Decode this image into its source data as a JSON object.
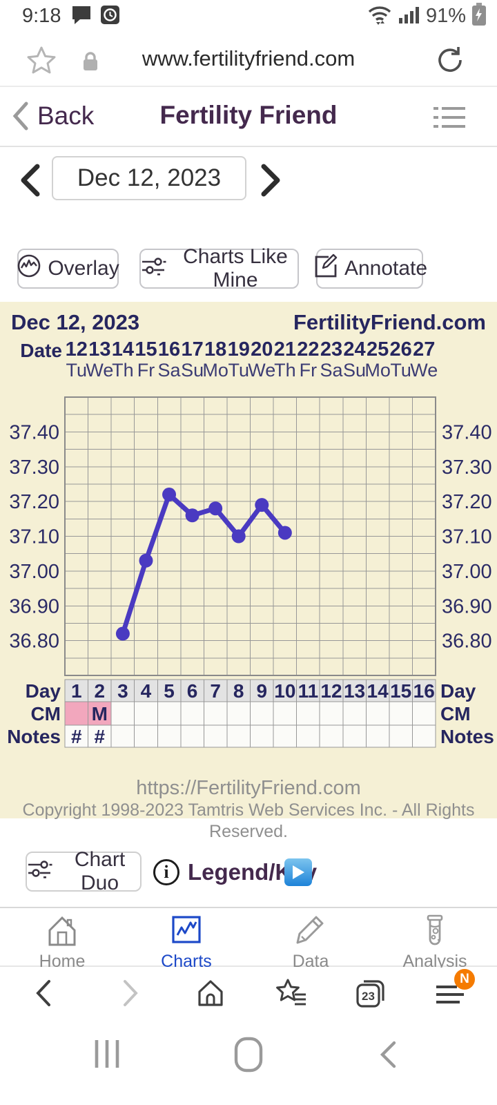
{
  "status_bar": {
    "time": "9:18",
    "battery_percent": "91%"
  },
  "url_bar": {
    "url": "www.fertilityfriend.com"
  },
  "app_header": {
    "back_label": "Back",
    "title": "Fertility Friend"
  },
  "date_nav": {
    "current_date": "Dec 12, 2023"
  },
  "actions": [
    {
      "label": "Overlay"
    },
    {
      "label": "Charts Like Mine"
    },
    {
      "label": "Annotate"
    }
  ],
  "chart_footer": {
    "url": "https://FertilityFriend.com",
    "copyright": "Copyright 1998-2023 Tamtris Web Services Inc. - All Rights Reserved."
  },
  "tools": {
    "chart_duo_label": "Chart Duo",
    "info_glyph": "i",
    "legend_label": "Legend/Key"
  },
  "bottom_nav": [
    {
      "label": "Home",
      "active": false
    },
    {
      "label": "Charts",
      "active": true
    },
    {
      "label": "Data",
      "active": false
    },
    {
      "label": "Analysis",
      "active": false
    }
  ],
  "browser_toolbar": {
    "tab_count": "23",
    "menu_badge": "N"
  },
  "colors": {
    "navy": "#26265f",
    "weekday_navy": "#3c3c74",
    "header_purple": "#44294d",
    "panel_cream": "#f5f0d5",
    "cm_pink": "#f2a7bd",
    "day_cell_gray": "#e3e3e3",
    "cell_white": "#fbfbf8",
    "grid_gray": "#979797",
    "charts_blue": "#1d49c8",
    "badge_orange": "#f57b00",
    "line_purple": "#4a3ac1"
  },
  "chart_data": {
    "type": "line",
    "title": "Dec 12, 2023",
    "watermark": "FertilityFriend.com",
    "x_dates": [
      "12",
      "13",
      "14",
      "15",
      "16",
      "17",
      "18",
      "19",
      "20",
      "21",
      "22",
      "23",
      "24",
      "25",
      "26",
      "27"
    ],
    "x_weekdays": [
      "Tu",
      "We",
      "Th",
      "Fr",
      "Sa",
      "Su",
      "Mo",
      "Tu",
      "We",
      "Th",
      "Fr",
      "Sa",
      "Su",
      "Mo",
      "Tu",
      "We"
    ],
    "cycle_days": [
      "1",
      "2",
      "3",
      "4",
      "5",
      "6",
      "7",
      "8",
      "9",
      "10",
      "11",
      "12",
      "13",
      "14",
      "15",
      "16"
    ],
    "series": [
      {
        "name": "temperature",
        "values": [
          null,
          null,
          36.82,
          37.03,
          37.22,
          37.16,
          37.18,
          37.1,
          37.19,
          37.11,
          null,
          null,
          null,
          null,
          null,
          null
        ]
      }
    ],
    "ylim": [
      36.7,
      37.5
    ],
    "minor_step": 0.05,
    "y_ticks": [
      "36.80",
      "36.90",
      "37.00",
      "37.10",
      "37.20",
      "37.30",
      "37.40"
    ],
    "grid": true,
    "legend_position": "none",
    "row_labels": {
      "date": "Date",
      "day": "Day",
      "cm": "CM",
      "notes": "Notes"
    },
    "cm_filled": [
      true,
      true,
      false,
      false,
      false,
      false,
      false,
      false,
      false,
      false,
      false,
      false,
      false,
      false,
      false,
      false
    ],
    "cm_texts": [
      "",
      "M",
      "",
      "",
      "",
      "",
      "",
      "",
      "",
      "",
      "",
      "",
      "",
      "",
      "",
      ""
    ],
    "notes_texts": [
      "#",
      "#",
      "",
      "",
      "",
      "",
      "",
      "",
      "",
      "",
      "",
      "",
      "",
      "",
      "",
      ""
    ],
    "line_color": "#4a3ac1"
  }
}
